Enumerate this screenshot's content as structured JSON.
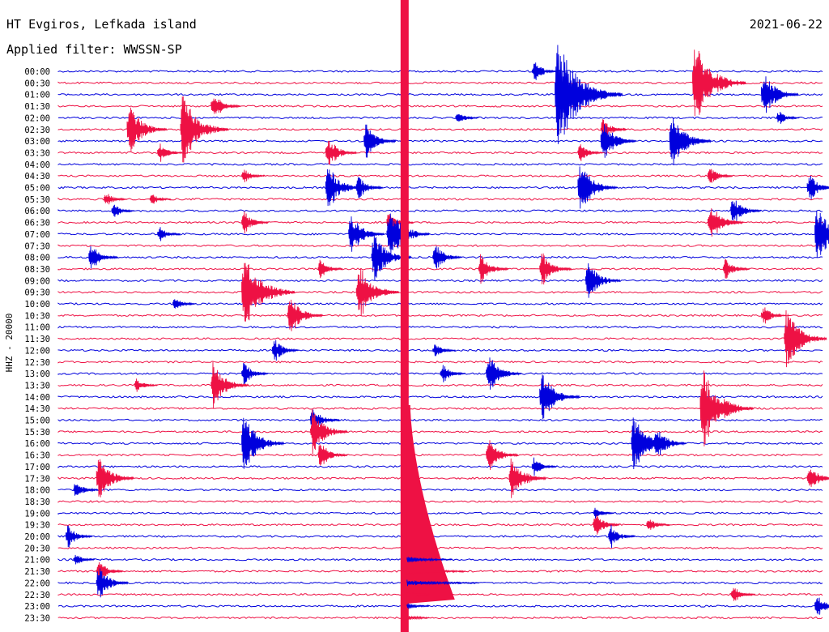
{
  "header": {
    "station": "HT Evgiros, Lefkada island",
    "filter": "Applied filter: WWSSN-SP",
    "date": "2021-06-22"
  },
  "chart_data": {
    "type": "helicorder",
    "ylabel": "HHZ - 20000",
    "colors": {
      "odd_trace": "#0000dd",
      "even_trace": "#ee1144",
      "background": "#ffffff",
      "text": "#000000"
    },
    "row_minutes": 30,
    "rows": [
      "00:00",
      "00:30",
      "01:00",
      "01:30",
      "02:00",
      "02:30",
      "03:00",
      "03:30",
      "04:00",
      "04:30",
      "05:00",
      "05:30",
      "06:00",
      "06:30",
      "07:00",
      "07:30",
      "08:00",
      "08:30",
      "09:00",
      "09:30",
      "10:00",
      "10:30",
      "11:00",
      "11:30",
      "12:00",
      "12:30",
      "13:00",
      "13:30",
      "14:00",
      "14:30",
      "15:00",
      "15:30",
      "16:00",
      "16:30",
      "17:00",
      "17:30",
      "18:00",
      "18:30",
      "19:00",
      "19:30",
      "20:00",
      "20:30",
      "21:00",
      "21:30",
      "22:00",
      "22:30",
      "23:00",
      "23:30"
    ],
    "events": [
      {
        "row": 0,
        "t": 0.62,
        "amp": 0.9
      },
      {
        "row": 1,
        "t": 0.83,
        "amp": 3.5
      },
      {
        "row": 2,
        "t": 0.65,
        "amp": 4.8
      },
      {
        "row": 2,
        "t": 0.92,
        "amp": 2.0
      },
      {
        "row": 3,
        "t": 0.2,
        "amp": 1.2
      },
      {
        "row": 4,
        "t": 0.52,
        "amp": 0.6
      },
      {
        "row": 4,
        "t": 0.94,
        "amp": 0.6
      },
      {
        "row": 5,
        "t": 0.09,
        "amp": 2.2
      },
      {
        "row": 5,
        "t": 0.16,
        "amp": 3.0
      },
      {
        "row": 5,
        "t": 0.71,
        "amp": 1.0
      },
      {
        "row": 6,
        "t": 0.4,
        "amp": 1.5
      },
      {
        "row": 6,
        "t": 0.71,
        "amp": 1.8
      },
      {
        "row": 6,
        "t": 0.8,
        "amp": 2.4
      },
      {
        "row": 7,
        "t": 0.13,
        "amp": 0.8
      },
      {
        "row": 7,
        "t": 0.35,
        "amp": 1.4
      },
      {
        "row": 7,
        "t": 0.68,
        "amp": 0.8
      },
      {
        "row": 9,
        "t": 0.24,
        "amp": 0.6
      },
      {
        "row": 9,
        "t": 0.85,
        "amp": 0.8
      },
      {
        "row": 10,
        "t": 0.35,
        "amp": 2.0
      },
      {
        "row": 10,
        "t": 0.39,
        "amp": 1.0
      },
      {
        "row": 10,
        "t": 0.68,
        "amp": 2.2
      },
      {
        "row": 10,
        "t": 0.98,
        "amp": 1.2
      },
      {
        "row": 11,
        "t": 0.06,
        "amp": 0.6
      },
      {
        "row": 11,
        "t": 0.12,
        "amp": 0.5
      },
      {
        "row": 12,
        "t": 0.07,
        "amp": 0.6
      },
      {
        "row": 12,
        "t": 0.88,
        "amp": 1.3
      },
      {
        "row": 13,
        "t": 0.24,
        "amp": 1.0
      },
      {
        "row": 13,
        "t": 0.43,
        "amp": 1.0
      },
      {
        "row": 13,
        "t": 0.85,
        "amp": 1.8
      },
      {
        "row": 14,
        "t": 0.13,
        "amp": 0.6
      },
      {
        "row": 14,
        "t": 0.38,
        "amp": 1.8
      },
      {
        "row": 14,
        "t": 0.43,
        "amp": 2.5
      },
      {
        "row": 14,
        "t": 0.99,
        "amp": 2.5
      },
      {
        "row": 16,
        "t": 0.04,
        "amp": 1.2
      },
      {
        "row": 16,
        "t": 0.41,
        "amp": 2.2
      },
      {
        "row": 16,
        "t": 0.49,
        "amp": 1.2
      },
      {
        "row": 17,
        "t": 0.34,
        "amp": 0.8
      },
      {
        "row": 17,
        "t": 0.55,
        "amp": 1.3
      },
      {
        "row": 17,
        "t": 0.63,
        "amp": 1.5
      },
      {
        "row": 17,
        "t": 0.87,
        "amp": 1.0
      },
      {
        "row": 18,
        "t": 0.69,
        "amp": 1.7
      },
      {
        "row": 19,
        "t": 0.24,
        "amp": 3.5
      },
      {
        "row": 19,
        "t": 0.39,
        "amp": 2.5
      },
      {
        "row": 20,
        "t": 0.15,
        "amp": 0.6
      },
      {
        "row": 21,
        "t": 0.3,
        "amp": 1.8
      },
      {
        "row": 21,
        "t": 0.92,
        "amp": 0.8
      },
      {
        "row": 23,
        "t": 0.95,
        "amp": 2.5
      },
      {
        "row": 24,
        "t": 0.28,
        "amp": 1.0
      },
      {
        "row": 24,
        "t": 0.49,
        "amp": 0.6
      },
      {
        "row": 26,
        "t": 0.24,
        "amp": 1.0
      },
      {
        "row": 26,
        "t": 0.5,
        "amp": 0.8
      },
      {
        "row": 26,
        "t": 0.56,
        "amp": 1.8
      },
      {
        "row": 27,
        "t": 0.1,
        "amp": 0.6
      },
      {
        "row": 27,
        "t": 0.2,
        "amp": 2.0
      },
      {
        "row": 28,
        "t": 0.63,
        "amp": 2.2
      },
      {
        "row": 29,
        "t": 0.84,
        "amp": 3.5
      },
      {
        "row": 30,
        "t": 0.33,
        "amp": 1.2
      },
      {
        "row": 31,
        "t": 0.33,
        "amp": 2.0
      },
      {
        "row": 32,
        "t": 0.24,
        "amp": 2.5
      },
      {
        "row": 32,
        "t": 0.75,
        "amp": 2.5
      },
      {
        "row": 32,
        "t": 0.78,
        "amp": 1.5
      },
      {
        "row": 33,
        "t": 0.34,
        "amp": 1.2
      },
      {
        "row": 33,
        "t": 0.56,
        "amp": 1.5
      },
      {
        "row": 34,
        "t": 0.62,
        "amp": 0.8
      },
      {
        "row": 35,
        "t": 0.05,
        "amp": 2.0
      },
      {
        "row": 35,
        "t": 0.59,
        "amp": 2.0
      },
      {
        "row": 35,
        "t": 0.98,
        "amp": 1.2
      },
      {
        "row": 36,
        "t": 0.02,
        "amp": 0.8
      },
      {
        "row": 38,
        "t": 0.7,
        "amp": 0.5
      },
      {
        "row": 39,
        "t": 0.7,
        "amp": 1.0
      },
      {
        "row": 39,
        "t": 0.77,
        "amp": 0.6
      },
      {
        "row": 40,
        "t": 0.01,
        "amp": 1.0
      },
      {
        "row": 40,
        "t": 0.72,
        "amp": 1.0
      },
      {
        "row": 42,
        "t": 0.02,
        "amp": 0.5
      },
      {
        "row": 43,
        "t": 0.05,
        "amp": 1.0
      },
      {
        "row": 44,
        "t": 0.05,
        "amp": 1.5
      },
      {
        "row": 45,
        "t": 0.88,
        "amp": 0.8
      },
      {
        "row": 46,
        "t": 0.99,
        "amp": 1.0
      }
    ],
    "main_quake": {
      "row": 0,
      "t": 0.45,
      "coda_end_row": 47
    }
  }
}
